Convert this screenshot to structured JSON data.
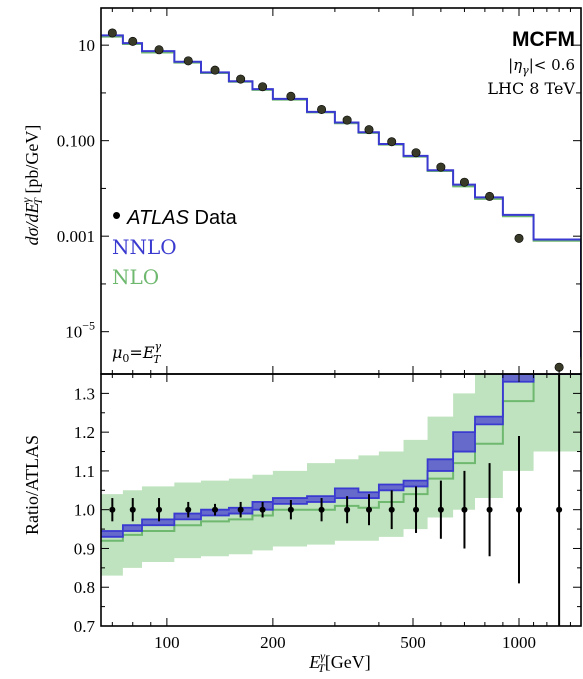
{
  "chart_data": [
    {
      "type": "line",
      "panel": "top",
      "ylabel": "dσ/dE",
      "ylabel_sup": "γ",
      "ylabel_sub": "T",
      "ylabel_unit": " [pb/GeV]",
      "yscale": "log",
      "ylim": [
        1.3e-06,
        60
      ],
      "xscale": "log",
      "xlim": [
        65,
        1500
      ],
      "y_ticks": [
        10,
        0.1,
        0.001
      ],
      "y_tick_labels": [
        "10",
        "0.100",
        "0.001"
      ],
      "y_tick_exp": {
        "value": 1e-05,
        "base": "10",
        "exponent": "−5"
      },
      "annotation_title": "MCFM",
      "annotation_eta_prefix": "|η",
      "annotation_eta_sub": "γ",
      "annotation_eta_suffix": "|< 0.6",
      "annotation_energy": "LHC 8 TeV",
      "annotation_scale_mu": "μ",
      "annotation_scale_sub0": "0",
      "annotation_scale_eq": "=E",
      "annotation_scale_sup": "γ",
      "annotation_scale_sub": "T",
      "legend": [
        {
          "marker": "•",
          "name": "ATLAS",
          "suffix": " Data",
          "color": "#000000"
        },
        {
          "name": "NNLO",
          "color": "#3a3ad0"
        },
        {
          "name": "NLO",
          "color": "#6fb86f"
        }
      ],
      "bin_edges": [
        65,
        75,
        85,
        105,
        125,
        150,
        175,
        200,
        250,
        300,
        350,
        400,
        470,
        550,
        650,
        750,
        900,
        1100,
        1500
      ],
      "series": [
        {
          "name": "NNLO",
          "color": "#3a3ad0",
          "values": [
            16,
            11,
            7.5,
            4.5,
            2.7,
            1.75,
            1.2,
            0.75,
            0.4,
            0.24,
            0.15,
            0.085,
            0.048,
            0.024,
            0.012,
            0.0065,
            0.0028,
            0.00085,
            2.95e-06
          ]
        },
        {
          "name": "NLO",
          "color": "#6fb86f",
          "values": [
            15,
            10.5,
            7.0,
            4.3,
            2.6,
            1.7,
            1.15,
            0.72,
            0.39,
            0.23,
            0.145,
            0.082,
            0.046,
            0.023,
            0.011,
            0.006,
            0.0026,
            0.0008,
            2.7e-06
          ]
        }
      ],
      "points": {
        "name": "ATLAS Data",
        "x": [
          70,
          80,
          95,
          115,
          137,
          162,
          187,
          225,
          275,
          325,
          375,
          435,
          510,
          600,
          700,
          825,
          1000,
          1300
        ],
        "y": [
          18,
          12,
          8,
          4.7,
          3.0,
          1.95,
          1.35,
          0.85,
          0.45,
          0.27,
          0.17,
          0.095,
          0.056,
          0.028,
          0.0135,
          0.0068,
          0.0009,
          1.8e-06
        ]
      }
    },
    {
      "type": "line",
      "panel": "bottom",
      "ylabel": "Ratio/ATLAS",
      "xlabel_E": "E",
      "xlabel_sup": "γ",
      "xlabel_sub": "T",
      "xlabel_unit": "[GeV]",
      "xscale": "log",
      "xlim": [
        65,
        1500
      ],
      "ylim": [
        0.7,
        1.35
      ],
      "x_ticks": [
        100,
        200,
        500,
        1000
      ],
      "x_tick_labels": [
        "100",
        "200",
        "500",
        "1000"
      ],
      "y_ticks": [
        0.7,
        0.8,
        0.9,
        1.0,
        1.1,
        1.2,
        1.3
      ],
      "y_tick_labels": [
        "0.7",
        "0.8",
        "0.9",
        "1.0",
        "1.1",
        "1.2",
        "1.3"
      ],
      "bin_edges": [
        65,
        75,
        85,
        105,
        125,
        150,
        175,
        200,
        250,
        300,
        350,
        400,
        470,
        550,
        650,
        750,
        900,
        1100,
        1500
      ],
      "series": [
        {
          "name": "NNLO",
          "color": "#3a3ad0",
          "band_color": "#5555cc",
          "lower": [
            0.93,
            0.945,
            0.96,
            0.975,
            0.985,
            0.99,
            1.0,
            1.015,
            1.02,
            1.03,
            1.03,
            1.05,
            1.06,
            1.1,
            1.15,
            1.22,
            1.33,
            1.4
          ],
          "upper": [
            0.945,
            0.96,
            0.975,
            0.99,
            1.0,
            1.005,
            1.02,
            1.03,
            1.035,
            1.055,
            1.045,
            1.065,
            1.075,
            1.13,
            1.2,
            1.24,
            1.4,
            1.4
          ],
          "central": [
            0.94,
            0.955,
            0.97,
            0.985,
            0.995,
            1.0,
            1.01,
            1.025,
            1.03,
            1.045,
            1.04,
            1.06,
            1.07,
            1.12,
            1.18,
            1.23,
            1.38,
            1.4
          ]
        },
        {
          "name": "NLO",
          "color": "#6fb86f",
          "band_color": "#bfe3bf",
          "lower": [
            0.83,
            0.85,
            0.865,
            0.875,
            0.88,
            0.885,
            0.895,
            0.905,
            0.91,
            0.92,
            0.92,
            0.93,
            0.95,
            0.98,
            1.0,
            1.03,
            1.1,
            1.15
          ],
          "upper": [
            1.04,
            1.05,
            1.06,
            1.07,
            1.075,
            1.08,
            1.09,
            1.1,
            1.12,
            1.13,
            1.14,
            1.15,
            1.18,
            1.24,
            1.3,
            1.37,
            1.4,
            1.4
          ],
          "central": [
            0.92,
            0.935,
            0.945,
            0.96,
            0.97,
            0.975,
            0.985,
            1.0,
            1.0,
            1.01,
            1.005,
            1.02,
            1.04,
            1.08,
            1.12,
            1.17,
            1.28,
            1.4
          ]
        }
      ],
      "points": {
        "name": "ATLAS",
        "x": [
          70,
          80,
          95,
          115,
          137,
          162,
          187,
          225,
          275,
          325,
          375,
          435,
          510,
          600,
          700,
          825,
          1000,
          1300
        ],
        "y": [
          1,
          1,
          1,
          1,
          1,
          1,
          1,
          1,
          1,
          1,
          1,
          1,
          1,
          1,
          1,
          1,
          1,
          1
        ],
        "err": [
          0.03,
          0.03,
          0.03,
          0.02,
          0.015,
          0.02,
          0.02,
          0.025,
          0.03,
          0.035,
          0.04,
          0.05,
          0.06,
          0.075,
          0.1,
          0.12,
          0.19,
          0.5
        ]
      }
    }
  ]
}
